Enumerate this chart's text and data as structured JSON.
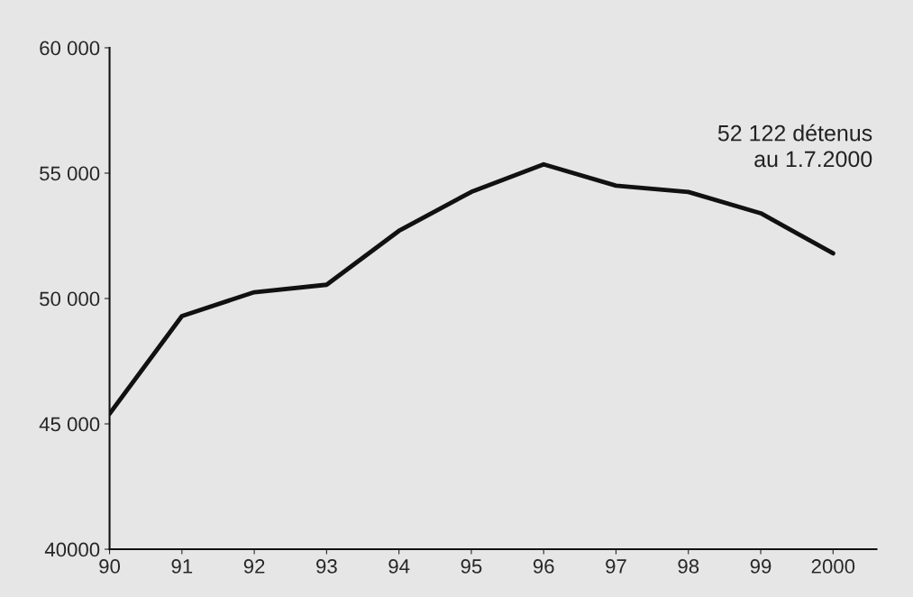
{
  "chart_data": {
    "type": "line",
    "categories": [
      "90",
      "91",
      "92",
      "93",
      "94",
      "95",
      "96",
      "97",
      "98",
      "99",
      "2000"
    ],
    "series": [
      {
        "color": "#111111",
        "values": [
          45400,
          49300,
          50250,
          50550,
          52700,
          54250,
          55350,
          54500,
          54250,
          53400,
          51800
        ]
      }
    ],
    "ylim": [
      40000,
      60000
    ],
    "yticks": [
      {
        "value": 40000,
        "label": "40000"
      },
      {
        "value": 45000,
        "label": "45 000"
      },
      {
        "value": 50000,
        "label": "50 000"
      },
      {
        "value": 55000,
        "label": "55 000"
      },
      {
        "value": 60000,
        "label": "60 000"
      }
    ],
    "annotations": [
      "52 122 détenus\nau 1.7.2000"
    ],
    "grid": false,
    "legend": false,
    "marker": "none",
    "line_style": "solid"
  }
}
